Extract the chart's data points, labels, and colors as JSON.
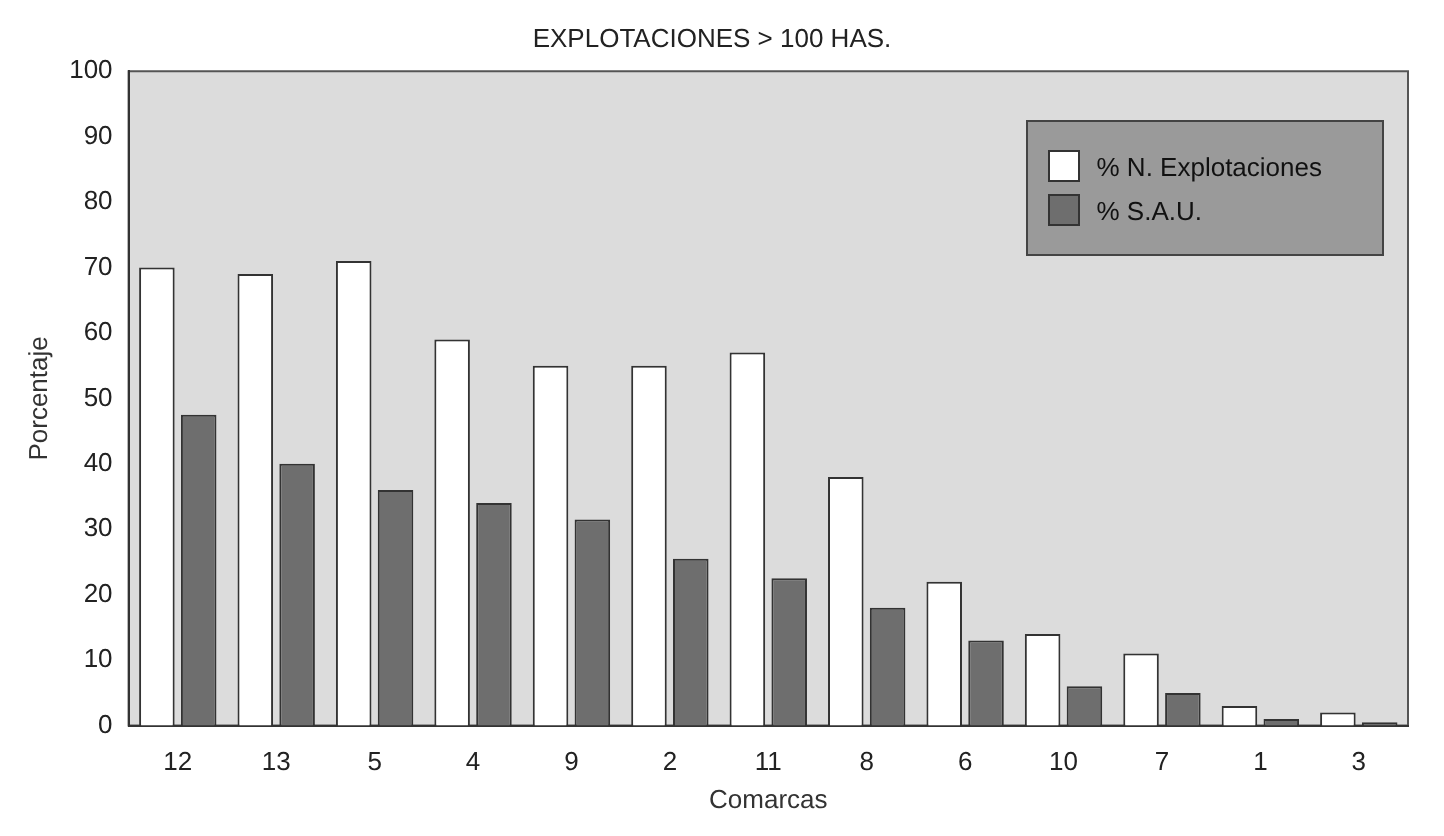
{
  "chart_data": {
    "type": "bar",
    "title": "EXPLOTACIONES > 100 HAS.",
    "xlabel": "Comarcas",
    "ylabel": "Porcentaje",
    "categories": [
      "12",
      "13",
      "5",
      "4",
      "9",
      "2",
      "11",
      "8",
      "6",
      "10",
      "7",
      "1",
      "3"
    ],
    "series": [
      {
        "name": "% N. Explotaciones",
        "color": "#ffffff",
        "values": [
          70,
          69,
          71,
          59,
          55,
          55,
          57,
          38,
          22,
          14,
          11,
          3,
          2
        ]
      },
      {
        "name": "% S.A.U.",
        "color": "#6e6e6e",
        "values": [
          47.5,
          40,
          36,
          34,
          31.5,
          25.5,
          22.5,
          18,
          13,
          6,
          5,
          1,
          0.5
        ]
      }
    ],
    "ylim": [
      0,
      100
    ],
    "yticks": [
      0,
      10,
      20,
      30,
      40,
      50,
      60,
      70,
      80,
      90,
      100
    ],
    "legend": "top right"
  }
}
